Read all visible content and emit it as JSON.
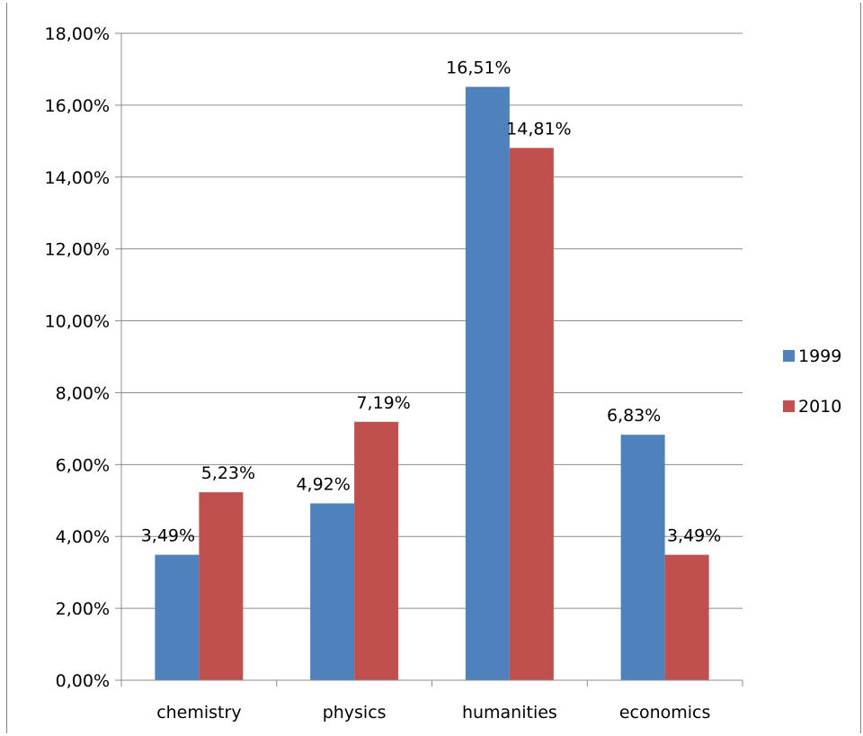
{
  "chart_data": {
    "type": "bar",
    "categories": [
      "chemistry",
      "physics",
      "humanities",
      "economics"
    ],
    "series": [
      {
        "name": "1999",
        "values": [
          3.49,
          4.92,
          16.51,
          6.83
        ],
        "labels": [
          "3,49%",
          "4,92%",
          "16,51%",
          "6,83%"
        ],
        "color": "#4f81bd"
      },
      {
        "name": "2010",
        "values": [
          5.23,
          7.19,
          14.81,
          3.49
        ],
        "labels": [
          "5,23%",
          "7,19%",
          "14,81%",
          "3,49%"
        ],
        "color": "#c0504d"
      }
    ],
    "y_ticks": [
      "0,00%",
      "2,00%",
      "4,00%",
      "6,00%",
      "8,00%",
      "10,00%",
      "12,00%",
      "14,00%",
      "16,00%",
      "18,00%"
    ],
    "ylim": [
      0,
      18
    ],
    "grid": true,
    "legend_position": "right"
  }
}
